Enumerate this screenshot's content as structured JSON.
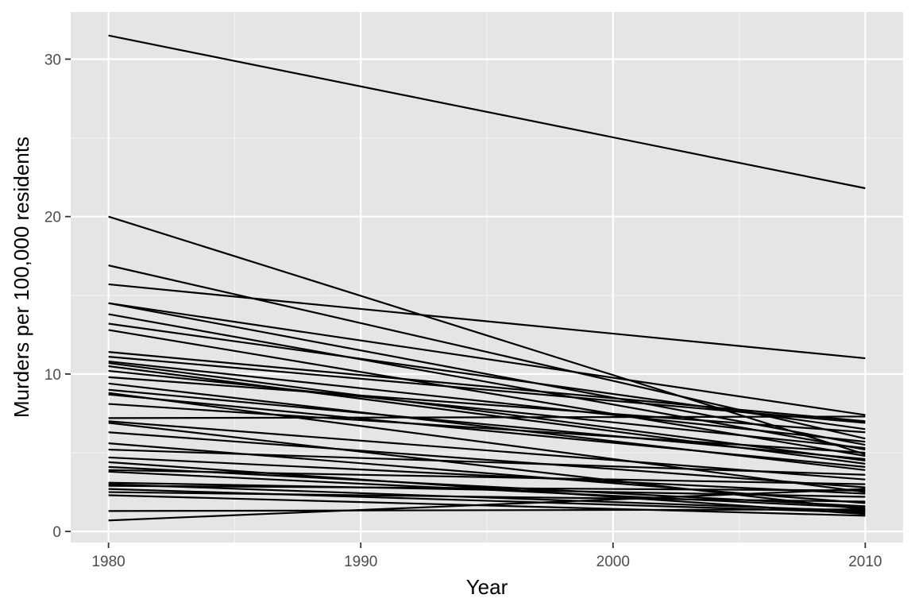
{
  "chart_data": {
    "type": "line",
    "title": "",
    "xlabel": "Year",
    "ylabel": "Murders per 100,000 residents",
    "x": [
      1980,
      2010
    ],
    "xlim": [
      1978.5,
      2011.5
    ],
    "ylim": [
      -0.7,
      33.0
    ],
    "x_ticks": [
      1980,
      1990,
      2000,
      2010
    ],
    "x_tick_labels": [
      "1980",
      "1990",
      "2000",
      "2010"
    ],
    "y_ticks": [
      0,
      10,
      20,
      30
    ],
    "y_tick_labels": [
      "0",
      "10",
      "20",
      "30"
    ],
    "grid": true,
    "legend": "none",
    "series": [
      {
        "values": [
          31.5,
          21.8
        ]
      },
      {
        "values": [
          20.0,
          4.9
        ]
      },
      {
        "values": [
          16.9,
          5.9
        ]
      },
      {
        "values": [
          15.7,
          11.0
        ]
      },
      {
        "values": [
          14.5,
          7.4
        ]
      },
      {
        "values": [
          14.5,
          5.5
        ]
      },
      {
        "values": [
          13.8,
          5.2
        ]
      },
      {
        "values": [
          13.2,
          6.5
        ]
      },
      {
        "values": [
          12.8,
          4.8
        ]
      },
      {
        "values": [
          11.4,
          7.0
        ]
      },
      {
        "values": [
          11.1,
          6.9
        ]
      },
      {
        "values": [
          10.8,
          5.7
        ]
      },
      {
        "values": [
          10.7,
          4.5
        ]
      },
      {
        "values": [
          10.5,
          4.3
        ]
      },
      {
        "values": [
          10.2,
          5.3
        ]
      },
      {
        "values": [
          9.8,
          6.3
        ]
      },
      {
        "values": [
          9.4,
          3.9
        ]
      },
      {
        "values": [
          9.0,
          4.6
        ]
      },
      {
        "values": [
          8.8,
          2.5
        ]
      },
      {
        "values": [
          8.7,
          4.1
        ]
      },
      {
        "values": [
          8.1,
          5.0
        ]
      },
      {
        "values": [
          7.2,
          7.3
        ]
      },
      {
        "values": [
          7.0,
          3.3
        ]
      },
      {
        "values": [
          6.9,
          1.4
        ]
      },
      {
        "values": [
          6.3,
          2.8
        ]
      },
      {
        "values": [
          5.6,
          1.8
        ]
      },
      {
        "values": [
          5.2,
          3.6
        ]
      },
      {
        "values": [
          4.7,
          2.4
        ]
      },
      {
        "values": [
          4.4,
          1.1
        ]
      },
      {
        "values": [
          4.1,
          1.6
        ]
      },
      {
        "values": [
          3.9,
          3.0
        ]
      },
      {
        "values": [
          3.8,
          1.5
        ]
      },
      {
        "values": [
          3.1,
          2.2
        ]
      },
      {
        "values": [
          3.0,
          1.3
        ]
      },
      {
        "values": [
          2.9,
          2.6
        ]
      },
      {
        "values": [
          2.7,
          1.2
        ]
      },
      {
        "values": [
          2.5,
          1.9
        ]
      },
      {
        "values": [
          2.3,
          1.0
        ]
      },
      {
        "values": [
          1.3,
          1.4
        ]
      },
      {
        "values": [
          0.7,
          2.7
        ]
      }
    ],
    "colors": {
      "panel": "#e5e5e5",
      "grid_major": "#ffffff",
      "grid_minor": "#f2f2f2",
      "line": "#000000",
      "tick": "#333333",
      "tick_label": "#4d4d4d",
      "axis_title": "#000000"
    }
  }
}
